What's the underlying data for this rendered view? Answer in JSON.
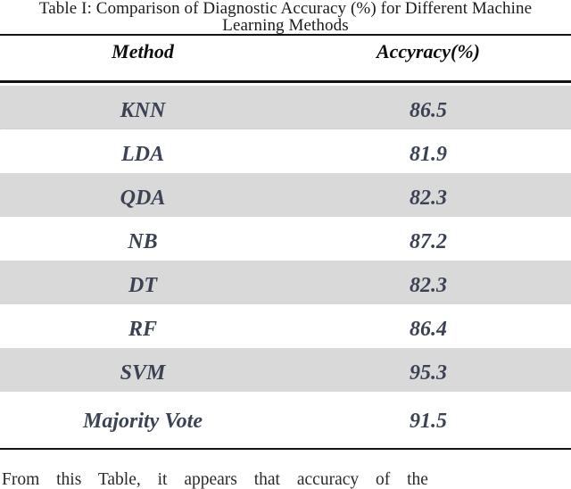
{
  "table": {
    "caption_line1": "Table I: Comparison of Diagnostic Accuracy (%) for Different Machine",
    "caption_line2": "Learning Methods",
    "columns": [
      "Method",
      "Accyracy(%)"
    ],
    "rows": [
      {
        "method": "KNN",
        "accuracy": "86.5"
      },
      {
        "method": "LDA",
        "accuracy": "81.9"
      },
      {
        "method": "QDA",
        "accuracy": "82.3"
      },
      {
        "method": "NB",
        "accuracy": "87.2"
      },
      {
        "method": "DT",
        "accuracy": "82.3"
      },
      {
        "method": "RF",
        "accuracy": "86.4"
      },
      {
        "method": "SVM",
        "accuracy": "95.3"
      },
      {
        "method": "Majority Vote",
        "accuracy": "91.5"
      }
    ]
  },
  "chart_data": {
    "type": "table",
    "title": "Table I: Comparison of Diagnostic Accuracy (%) for Different Machine Learning Methods",
    "categories": [
      "KNN",
      "LDA",
      "QDA",
      "NB",
      "DT",
      "RF",
      "SVM",
      "Majority Vote"
    ],
    "values": [
      86.5,
      81.9,
      82.3,
      87.2,
      82.3,
      86.4,
      95.3,
      91.5
    ],
    "xlabel": "Method",
    "ylabel": "Accyracy(%)"
  },
  "body_text_fragment": "From this Table, it appears that accuracy of the",
  "colors": {
    "row_shading": "#d9d9d9",
    "row_text": "#3a4253",
    "rule": "#121212"
  }
}
